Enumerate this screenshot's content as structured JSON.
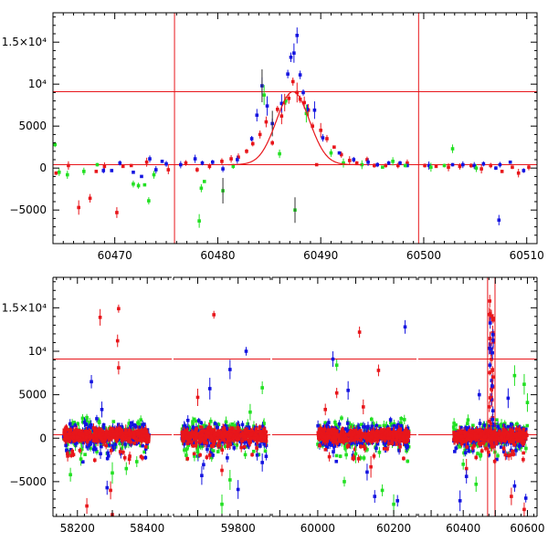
{
  "chart_data": [
    {
      "type": "scatter",
      "panel": "top",
      "xlim": [
        60464,
        60511
      ],
      "ylim": [
        -9000,
        18500
      ],
      "x_ticks": [
        60470,
        60480,
        60490,
        60500,
        60510
      ],
      "x_tick_labels": [
        "60470",
        "60480",
        "60490",
        "60500",
        "60510"
      ],
      "y_ticks": [
        -5000,
        0,
        5000,
        10000,
        15000
      ],
      "y_tick_labels": [
        "−5000",
        "0",
        "5000",
        "10⁴",
        "1.5×10⁴"
      ],
      "vertical_lines": [
        60475.8,
        60499.5
      ],
      "horizontal_lines": [
        9100,
        400
      ],
      "fit_curve": {
        "type": "gaussian",
        "baseline": 400,
        "amplitude": 8700,
        "center": 60487.3,
        "sigma": 1.6,
        "x_range": [
          60481,
          60494
        ]
      },
      "series": [
        {
          "color": "#e8161b",
          "points": [
            [
              60464.3,
              -600
            ],
            [
              60465.5,
              300
            ],
            [
              60466.5,
              -4700
            ],
            [
              60467.6,
              -3600
            ],
            [
              60468.2,
              -400
            ],
            [
              60469,
              200
            ],
            [
              60470.2,
              -5300
            ],
            [
              60470.8,
              200
            ],
            [
              60471.6,
              300
            ],
            [
              60473.1,
              700
            ],
            [
              60475.2,
              -200
            ],
            [
              60476.9,
              600
            ],
            [
              60478.0,
              -200
            ],
            [
              60479.2,
              200
            ],
            [
              60480.4,
              800
            ],
            [
              60481.3,
              1100
            ],
            [
              60482.0,
              1300
            ],
            [
              60482.8,
              2000
            ],
            [
              60483.4,
              2900
            ],
            [
              60484.1,
              4000
            ],
            [
              60484.7,
              5500
            ],
            [
              60485.3,
              3000
            ],
            [
              60485.8,
              7000
            ],
            [
              60486.2,
              6200
            ],
            [
              60486.5,
              7800
            ],
            [
              60486.9,
              8300
            ],
            [
              60487.3,
              10300
            ],
            [
              60487.7,
              9000
            ],
            [
              60488.0,
              8200
            ],
            [
              60488.4,
              7800
            ],
            [
              60488.8,
              6900
            ],
            [
              60489.2,
              5000
            ],
            [
              60489.6,
              400
            ],
            [
              60490.0,
              4500
            ],
            [
              60490.6,
              3500
            ],
            [
              60491.3,
              2500
            ],
            [
              60492.0,
              1600
            ],
            [
              60492.8,
              900
            ],
            [
              60493.5,
              600
            ],
            [
              60494.5,
              1000
            ],
            [
              60495.2,
              300
            ],
            [
              60496.3,
              300
            ],
            [
              60497.5,
              300
            ],
            [
              60498.4,
              600
            ],
            [
              60500.1,
              300
            ],
            [
              60501.2,
              200
            ],
            [
              60502.4,
              100
            ],
            [
              60503.5,
              200
            ],
            [
              60504.6,
              300
            ],
            [
              60505.6,
              -100
            ],
            [
              60506.5,
              300
            ],
            [
              60507.6,
              -400
            ],
            [
              60508.6,
              100
            ],
            [
              60509.2,
              -600
            ],
            [
              60510.2,
              100
            ]
          ]
        },
        {
          "color": "#1414e0",
          "points": [
            [
              60468.9,
              -300
            ],
            [
              60469.7,
              -300
            ],
            [
              60470.5,
              600
            ],
            [
              60471.8,
              -500
            ],
            [
              60472.6,
              -1000
            ],
            [
              60473.4,
              1100
            ],
            [
              60474.0,
              -200
            ],
            [
              60474.6,
              800
            ],
            [
              60475.0,
              500
            ],
            [
              60476.4,
              400
            ],
            [
              60477.8,
              1100
            ],
            [
              60478.5,
              600
            ],
            [
              60479.5,
              700
            ],
            [
              60480.5,
              -100
            ],
            [
              60481.9,
              1000
            ],
            [
              60483.3,
              3500
            ],
            [
              60483.8,
              6300
            ],
            [
              60484.3,
              9800
            ],
            [
              60484.8,
              7400
            ],
            [
              60485.3,
              5300
            ],
            [
              60486.2,
              7700
            ],
            [
              60486.8,
              11200
            ],
            [
              60487.1,
              13200
            ],
            [
              60487.4,
              13700
            ],
            [
              60487.7,
              15800
            ],
            [
              60488.0,
              11100
            ],
            [
              60488.3,
              9000
            ],
            [
              60488.7,
              7000
            ],
            [
              60489.4,
              6900
            ],
            [
              60490.2,
              3600
            ],
            [
              60491.8,
              1800
            ],
            [
              60493.2,
              1000
            ],
            [
              60494.6,
              700
            ],
            [
              60495.5,
              400
            ],
            [
              60496.6,
              600
            ],
            [
              60497.7,
              600
            ],
            [
              60498.4,
              300
            ],
            [
              60500.5,
              300
            ],
            [
              60502.8,
              400
            ],
            [
              60503.8,
              400
            ],
            [
              60504.9,
              300
            ],
            [
              60505.8,
              500
            ],
            [
              60507.0,
              0
            ],
            [
              60507.4,
              400
            ],
            [
              60507.3,
              -6200
            ],
            [
              60508.4,
              700
            ],
            [
              60509.7,
              -300
            ]
          ]
        },
        {
          "color": "#22e022",
          "points": [
            [
              60464.2,
              2800
            ],
            [
              60464.6,
              -500
            ],
            [
              60465.4,
              -800
            ],
            [
              60467.0,
              -400
            ],
            [
              60468.3,
              400
            ],
            [
              60471.8,
              -1900
            ],
            [
              60472.3,
              -2100
            ],
            [
              60472.9,
              -2000
            ],
            [
              60473.3,
              -3900
            ],
            [
              60473.8,
              -800
            ],
            [
              60478.2,
              -6300
            ],
            [
              60478.4,
              -2400
            ],
            [
              60478.7,
              -1600
            ],
            [
              60480.5,
              -2700
            ],
            [
              60481.5,
              200
            ],
            [
              60484.5,
              8700
            ],
            [
              60486.0,
              1700
            ],
            [
              60486.6,
              8000
            ],
            [
              60487.5,
              -5000
            ],
            [
              60488.6,
              6500
            ],
            [
              60491.0,
              1800
            ],
            [
              60492.2,
              600
            ],
            [
              60494.0,
              400
            ],
            [
              60496.0,
              100
            ],
            [
              60497.0,
              800
            ],
            [
              60498.2,
              300
            ],
            [
              60500.7,
              100
            ],
            [
              60502.0,
              300
            ],
            [
              60502.8,
              2300
            ],
            [
              60505.1,
              0
            ]
          ]
        }
      ]
    },
    {
      "type": "scatter",
      "panel": "bottom",
      "segments": [
        {
          "xlim": [
            58130,
            58470
          ],
          "x_ticks": [
            58200,
            58400
          ],
          "x_tick_labels": [
            "58200",
            "58400"
          ],
          "season": [
            58160,
            58405
          ]
        },
        {
          "xlim": [
            59640,
            59880
          ],
          "x_ticks": [
            59800
          ],
          "x_tick_labels": [
            "59800"
          ],
          "season": [
            59660,
            59870
          ]
        },
        {
          "xlim": [
            59880,
            60260
          ],
          "x_ticks": [
            60000,
            60200
          ],
          "x_tick_labels": [
            "60000",
            "60200"
          ],
          "season": [
            60000,
            60240
          ]
        },
        {
          "xlim": [
            60260,
            60630
          ],
          "x_ticks": [
            60400,
            60600
          ],
          "x_tick_labels": [
            "60400",
            "60600"
          ],
          "season": [
            60370,
            60600
          ]
        }
      ],
      "ylim": [
        -9000,
        18500
      ],
      "y_ticks": [
        -5000,
        0,
        5000,
        10000,
        15000
      ],
      "y_tick_labels": [
        "−5000",
        "0",
        "5000",
        "10⁴",
        "1.5×10⁴"
      ],
      "vertical_lines": [
        60476,
        60499
      ],
      "horizontal_lines": [
        9100,
        400
      ],
      "spike": {
        "x_range": [
          60480,
          60494
        ],
        "peak": 15800
      },
      "outliers": [
        {
          "color": "#e8161b",
          "points": [
            [
              58265,
              13900
            ],
            [
              58318,
              14900
            ],
            [
              58315,
              11200
            ],
            [
              58318,
              8100
            ],
            [
              58227,
              -7800
            ],
            [
              58295,
              -6000
            ],
            [
              58300,
              -8800
            ],
            [
              59740,
              14200
            ],
            [
              59700,
              4700
            ],
            [
              59760,
              -3700
            ],
            [
              60020,
              3300
            ],
            [
              60050,
              5200
            ],
            [
              60110,
              12200
            ],
            [
              60120,
              3600
            ],
            [
              60160,
              7800
            ],
            [
              60140,
              -3300
            ],
            [
              60410,
              -3500
            ],
            [
              60550,
              -6700
            ],
            [
              60590,
              -8200
            ]
          ]
        },
        {
          "color": "#1414e0",
          "points": [
            [
              58240,
              6500
            ],
            [
              58270,
              3300
            ],
            [
              58285,
              -5700
            ],
            [
              59780,
              7900
            ],
            [
              59820,
              10000
            ],
            [
              59730,
              5700
            ],
            [
              59710,
              -4300
            ],
            [
              59800,
              -5900
            ],
            [
              59860,
              -2800
            ],
            [
              60040,
              9100
            ],
            [
              60080,
              5500
            ],
            [
              60130,
              -3900
            ],
            [
              60150,
              -6700
            ],
            [
              60230,
              12800
            ],
            [
              60210,
              -7200
            ],
            [
              60390,
              -7200
            ],
            [
              60410,
              -4400
            ],
            [
              60450,
              5000
            ],
            [
              60560,
              -5500
            ],
            [
              60595,
              -6900
            ],
            [
              60540,
              4600
            ]
          ]
        },
        {
          "color": "#22e022",
          "points": [
            [
              58180,
              -4200
            ],
            [
              58210,
              -2400
            ],
            [
              58300,
              -4000
            ],
            [
              58340,
              -3500
            ],
            [
              58370,
              -2700
            ],
            [
              59700,
              -1600
            ],
            [
              59780,
              -4800
            ],
            [
              59830,
              3000
            ],
            [
              59860,
              5800
            ],
            [
              59760,
              -7600
            ],
            [
              60050,
              8400
            ],
            [
              60070,
              -5000
            ],
            [
              60100,
              -1800
            ],
            [
              60170,
              -6000
            ],
            [
              60200,
              -7600
            ],
            [
              60400,
              -3000
            ],
            [
              60560,
              7200
            ],
            [
              60590,
              6200
            ],
            [
              60600,
              4100
            ],
            [
              60440,
              -5300
            ]
          ]
        }
      ]
    }
  ]
}
